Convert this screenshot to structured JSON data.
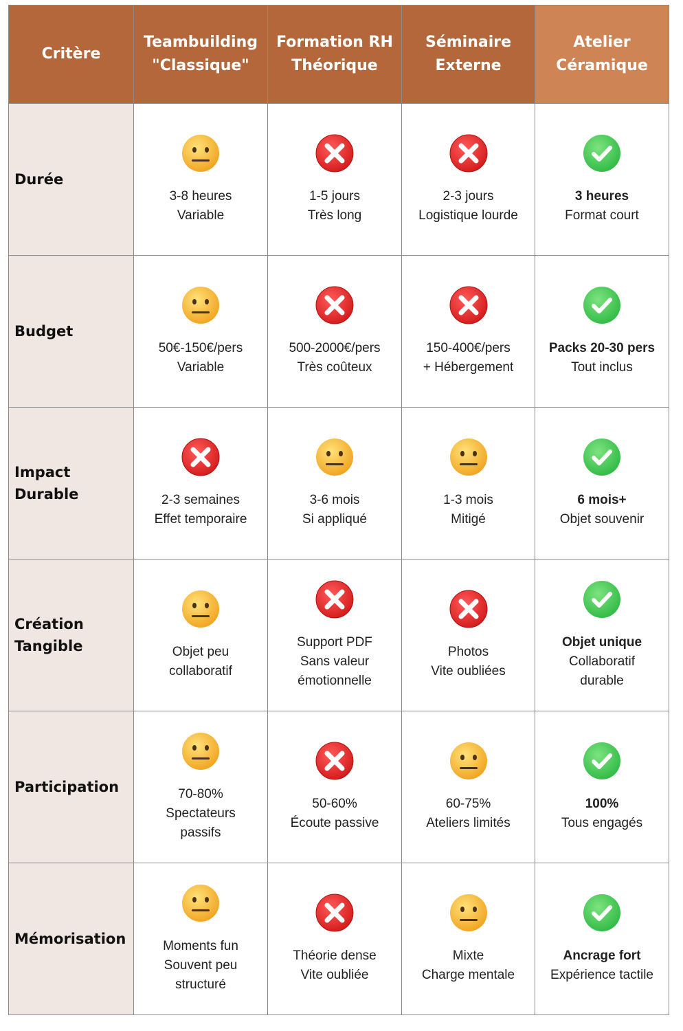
{
  "header": {
    "columns": [
      [
        "Critère"
      ],
      [
        "Teambuilding",
        "\"Classique\""
      ],
      [
        "Formation RH",
        "Théorique"
      ],
      [
        "Séminaire",
        "Externe"
      ],
      [
        "Atelier",
        "Céramique"
      ]
    ]
  },
  "rows": [
    {
      "label": [
        "Durée"
      ],
      "cells": [
        [
          "3-8 heures",
          "Variable"
        ],
        [
          "1-5 jours",
          "Très long"
        ],
        [
          "2-3 jours",
          "Logistique lourde"
        ],
        [
          "3 heures",
          "Format court"
        ]
      ]
    },
    {
      "label": [
        "Budget"
      ],
      "cells": [
        [
          "50€-150€/pers",
          "Variable"
        ],
        [
          "500-2000€/pers",
          "Très coûteux"
        ],
        [
          "150-400€/pers",
          "+ Hébergement"
        ],
        [
          "Packs 20-30 pers",
          "Tout inclus"
        ]
      ]
    },
    {
      "label": [
        "Impact",
        "Durable"
      ],
      "cells": [
        [
          "2-3 semaines",
          "Effet temporaire"
        ],
        [
          "3-6 mois",
          "Si appliqué"
        ],
        [
          "1-3 mois",
          "Mitigé"
        ],
        [
          "6 mois+",
          "Objet souvenir"
        ]
      ]
    },
    {
      "label": [
        "Création",
        "Tangible"
      ],
      "cells": [
        [
          "Objet peu",
          "collaboratif"
        ],
        [
          "Support PDF",
          "Sans valeur",
          "émotionnelle"
        ],
        [
          "Photos",
          "Vite oubliées"
        ],
        [
          "Objet unique",
          "Collaboratif",
          "durable"
        ]
      ]
    },
    {
      "label": [
        "Participation"
      ],
      "cells": [
        [
          "70-80%",
          "Spectateurs",
          "passifs"
        ],
        [
          "50-60%",
          "Écoute passive"
        ],
        [
          "60-75%",
          "Ateliers limités"
        ],
        [
          "100%",
          "Tous engagés"
        ]
      ]
    },
    {
      "label": [
        "Mémorisation"
      ],
      "cells": [
        [
          "Moments fun",
          "Souvent peu",
          "structuré"
        ],
        [
          "Théorie dense",
          "Vite oubliée"
        ],
        [
          "Mixte",
          "Charge mentale"
        ],
        [
          "Ancrage fort",
          "Expérience tactile"
        ]
      ]
    }
  ]
}
